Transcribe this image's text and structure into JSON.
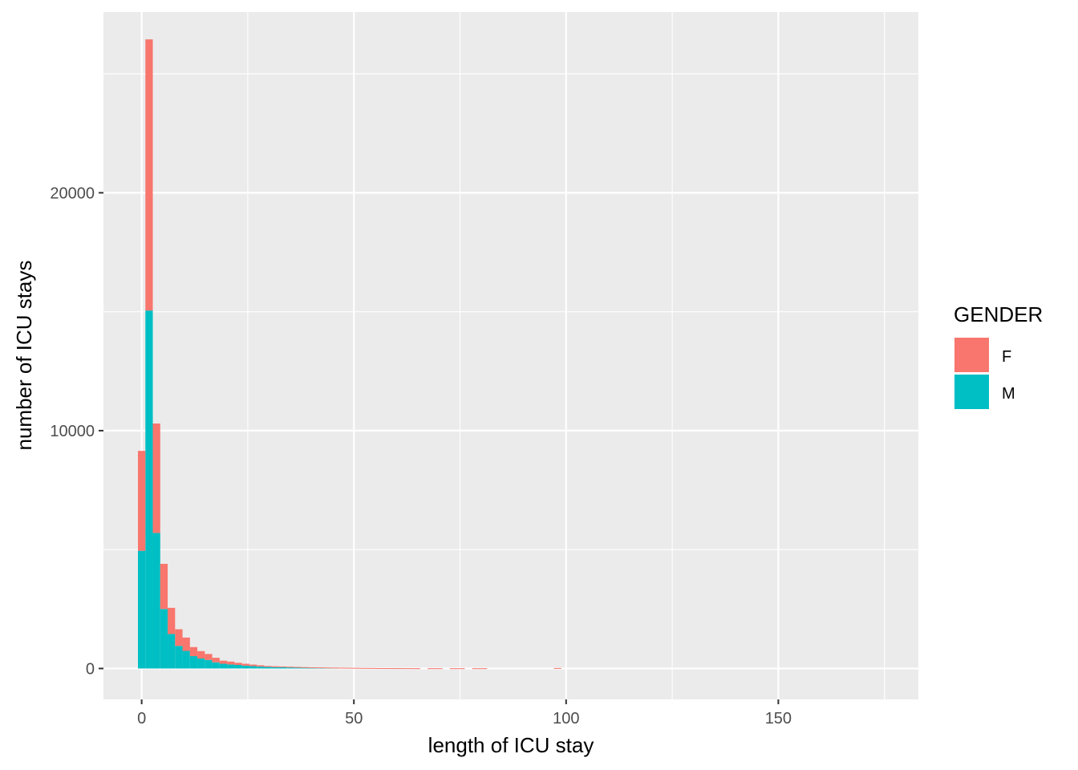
{
  "chart_data": {
    "type": "bar",
    "subtype": "stacked-histogram",
    "xlabel": "length of ICU stay",
    "ylabel": "number of ICU stays",
    "xlim": [
      -9,
      183
    ],
    "ylim": [
      -1300,
      27600
    ],
    "x_ticks": [
      0,
      50,
      100,
      150
    ],
    "x_tick_labels": [
      "0",
      "50",
      "100",
      "150"
    ],
    "y_ticks": [
      0,
      10000,
      20000
    ],
    "y_tick_labels": [
      "0",
      "10000",
      "20000"
    ],
    "x_minor_gridlines": [
      25,
      75,
      125,
      175
    ],
    "y_minor_gridlines": [
      5000,
      15000,
      25000
    ],
    "grid": true,
    "bin_width": 1.75,
    "legend": {
      "title": "GENDER",
      "position": "right",
      "entries": [
        {
          "label": "F",
          "color": "#F8766D"
        },
        {
          "label": "M",
          "color": "#00BFC4"
        }
      ]
    },
    "series": [
      {
        "name": "M",
        "color": "#00BFC4",
        "bin_start": [
          -0.875,
          0.875,
          2.625,
          4.375,
          6.125,
          7.875,
          9.625,
          11.375,
          13.125,
          14.875,
          16.625,
          18.375,
          20.125,
          21.875,
          23.625,
          25.375,
          27.125,
          28.875,
          30.625,
          32.375,
          34.125,
          35.875,
          37.625,
          39.375,
          41.125,
          42.875,
          44.625,
          46.375,
          48.125,
          49.875,
          51.625,
          53.375,
          55.125,
          56.875,
          58.625,
          60.375
        ],
        "counts": [
          4950,
          15050,
          5700,
          2500,
          1450,
          950,
          740,
          520,
          420,
          360,
          260,
          200,
          170,
          150,
          120,
          100,
          80,
          65,
          55,
          50,
          45,
          40,
          35,
          30,
          28,
          25,
          22,
          20,
          18,
          16,
          14,
          12,
          10,
          10,
          8,
          8
        ]
      },
      {
        "name": "F",
        "color": "#F8766D",
        "bin_start": [
          -0.875,
          0.875,
          2.625,
          4.375,
          6.125,
          7.875,
          9.625,
          11.375,
          13.125,
          14.875,
          16.625,
          18.375,
          20.125,
          21.875,
          23.625,
          25.375,
          27.125,
          28.875,
          30.625,
          32.375,
          34.125,
          35.875,
          37.625,
          39.375,
          41.125,
          42.875,
          44.625,
          46.375,
          48.125,
          49.875,
          51.625,
          53.375,
          55.125,
          56.875,
          58.625,
          60.375,
          62.125,
          63.875,
          67.375,
          69.125,
          72.625,
          74.375,
          77.875,
          79.625,
          97.125
        ],
        "counts": [
          4200,
          11400,
          4600,
          1900,
          1100,
          700,
          560,
          380,
          310,
          250,
          190,
          130,
          120,
          90,
          80,
          65,
          55,
          40,
          40,
          35,
          30,
          25,
          22,
          20,
          18,
          15,
          14,
          12,
          10,
          10,
          8,
          8,
          6,
          5,
          5,
          5,
          12,
          10,
          10,
          10,
          10,
          10,
          10,
          10,
          20
        ]
      }
    ]
  }
}
